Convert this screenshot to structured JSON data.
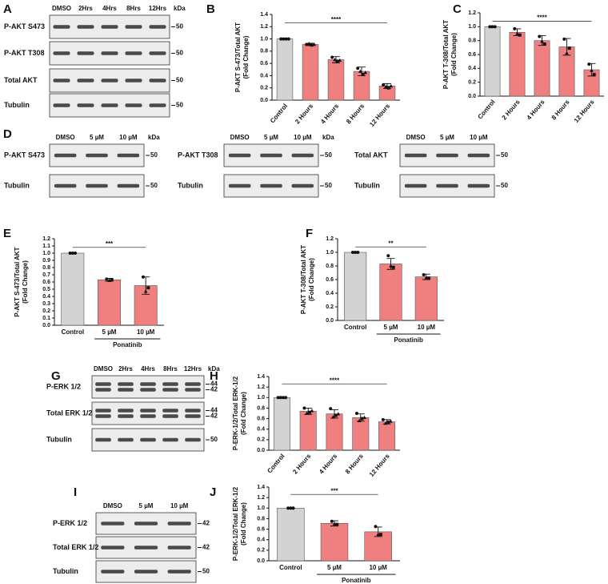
{
  "chart_data": [
    {
      "type": "bar",
      "panel": "B",
      "ylabel": [
        "P-AKT S-473/Total AKT",
        "(Fold Change)"
      ],
      "categories": [
        "Control",
        "2 Hours",
        "4 Hours",
        "8 Hours",
        "12 Hours"
      ],
      "values": [
        1.0,
        0.91,
        0.66,
        0.47,
        0.23
      ],
      "errors": [
        0,
        0.02,
        0.05,
        0.07,
        0.04
      ],
      "points": [
        [
          1.0,
          1.0,
          1.0,
          1.0
        ],
        [
          0.91,
          0.92,
          0.9,
          0.91
        ],
        [
          0.7,
          0.66,
          0.63,
          0.65
        ],
        [
          0.52,
          0.47,
          0.42,
          0.45
        ],
        [
          0.25,
          0.22,
          0.2,
          0.23
        ]
      ],
      "colors": [
        "#d3d3d3",
        "#f08080",
        "#f08080",
        "#f08080",
        "#f08080"
      ],
      "ylim": [
        0,
        1.4
      ],
      "yticks": [
        {
          "value": 0,
          "label": "0.0"
        },
        0.2,
        0.4,
        0.6,
        0.8,
        {
          "value": 1,
          "label": "1.0"
        },
        1.2,
        1.4
      ],
      "significance": "****"
    },
    {
      "type": "bar",
      "panel": "C",
      "ylabel": [
        "P-AKT T-308/Total AKT",
        "(Fold Change)"
      ],
      "categories": [
        "Control",
        "2 Hours",
        "4 Hours",
        "8 Hours",
        "12 Hours"
      ],
      "values": [
        1.0,
        0.92,
        0.8,
        0.71,
        0.38
      ],
      "errors": [
        0,
        0.05,
        0.07,
        0.12,
        0.09
      ],
      "points": [
        [
          1.0,
          1.0,
          1.0
        ],
        [
          0.97,
          0.9,
          0.88
        ],
        [
          0.86,
          0.79,
          0.75
        ],
        [
          0.82,
          0.62,
          0.69
        ],
        [
          0.46,
          0.37,
          0.31
        ]
      ],
      "colors": [
        "#d3d3d3",
        "#f08080",
        "#f08080",
        "#f08080",
        "#f08080"
      ],
      "ylim": [
        0,
        1.2
      ],
      "yticks": [
        {
          "value": 0,
          "label": "0.0"
        },
        0.2,
        0.4,
        0.6,
        0.8,
        {
          "value": 1,
          "label": "1.0"
        },
        1.2
      ],
      "significance": "****"
    },
    {
      "type": "bar",
      "panel": "E",
      "ylabel": [
        "P-AKT S-473/Total AKT",
        "(Fold Change)"
      ],
      "categories": [
        "Control",
        "5 µM",
        "10 µM"
      ],
      "group_label": "Ponatinib",
      "values": [
        1.0,
        0.63,
        0.55
      ],
      "errors": [
        0,
        0.02,
        0.12
      ],
      "points": [
        [
          1.0,
          1.0,
          1.0
        ],
        [
          0.64,
          0.62,
          0.63
        ],
        [
          0.67,
          0.47,
          0.52
        ]
      ],
      "colors": [
        "#d3d3d3",
        "#f08080",
        "#f08080"
      ],
      "ylim": [
        0,
        1.2
      ],
      "yticks": [
        {
          "value": 0,
          "label": "0.0"
        },
        0.1,
        0.2,
        0.3,
        0.4,
        0.5,
        0.6,
        0.7,
        0.8,
        0.9,
        {
          "value": 1,
          "label": "1.0"
        },
        1.1,
        1.2
      ],
      "significance": "***"
    },
    {
      "type": "bar",
      "panel": "F",
      "ylabel": [
        "P-AKT T-308/Total AKT",
        "(Fold Change)"
      ],
      "categories": [
        "Control",
        "5 µM",
        "10 µM"
      ],
      "group_label": "Ponatinib",
      "values": [
        1.0,
        0.83,
        0.64
      ],
      "errors": [
        0,
        0.08,
        0.04
      ],
      "points": [
        [
          1.0,
          1.0,
          1.0
        ],
        [
          0.95,
          0.8,
          0.78
        ],
        [
          0.67,
          0.63,
          0.62
        ]
      ],
      "colors": [
        "#d3d3d3",
        "#f08080",
        "#f08080"
      ],
      "ylim": [
        0,
        1.2
      ],
      "yticks": [
        {
          "value": 0,
          "label": "0.0"
        },
        0.2,
        0.4,
        0.6,
        0.8,
        {
          "value": 1,
          "label": "1.0"
        },
        1.2
      ],
      "significance": "**"
    },
    {
      "type": "bar",
      "panel": "H",
      "ylabel": [
        "P-ERK-1/2/Total ERK-1/2",
        "(Fold Change)"
      ],
      "categories": [
        "Control",
        "2 Hours",
        "4 Hours",
        "8 Hours",
        "12 Hours"
      ],
      "values": [
        1.0,
        0.74,
        0.69,
        0.62,
        0.54
      ],
      "errors": [
        0,
        0.06,
        0.08,
        0.07,
        0.04
      ],
      "points": [
        [
          1.0,
          1.0,
          1.0,
          1.0
        ],
        [
          0.8,
          0.7,
          0.72,
          0.75
        ],
        [
          0.79,
          0.63,
          0.66,
          0.69
        ],
        [
          0.7,
          0.56,
          0.6,
          0.62
        ],
        [
          0.58,
          0.51,
          0.53,
          0.55
        ]
      ],
      "colors": [
        "#d3d3d3",
        "#f08080",
        "#f08080",
        "#f08080",
        "#f08080"
      ],
      "ylim": [
        0,
        1.4
      ],
      "yticks": [
        {
          "value": 0,
          "label": "0.0"
        },
        0.2,
        0.4,
        0.6,
        0.8,
        {
          "value": 1,
          "label": "1.0"
        },
        1.2,
        1.4
      ],
      "significance": "****"
    },
    {
      "type": "bar",
      "panel": "J",
      "ylabel": [
        "P-ERK-1/2/Total ERK-1/2",
        "(Fold Change)"
      ],
      "categories": [
        "Control",
        "5 µM",
        "10 µM"
      ],
      "group_label": "Ponatinib",
      "values": [
        1.0,
        0.71,
        0.55
      ],
      "errors": [
        0,
        0.05,
        0.09
      ],
      "points": [
        [
          1.0,
          1.0,
          1.0
        ],
        [
          0.75,
          0.7,
          0.69
        ],
        [
          0.65,
          0.5,
          0.5
        ]
      ],
      "colors": [
        "#d3d3d3",
        "#f08080",
        "#f08080"
      ],
      "ylim": [
        0,
        1.4
      ],
      "yticks": [
        {
          "value": 0,
          "label": "0.0"
        },
        0.2,
        0.4,
        0.6,
        0.8,
        {
          "value": 1,
          "label": "1.0"
        },
        1.2,
        1.4
      ],
      "significance": "***"
    }
  ],
  "blot_panels": [
    {
      "panel": "A",
      "blots": [
        {
          "lanes": [
            "DMSO",
            "2Hrs",
            "4Hrs",
            "8Hrs",
            "12Hrs"
          ],
          "unit": "kDa",
          "rows": [
            {
              "label": "P-AKT S473",
              "markers": [
                "50"
              ]
            },
            {
              "label": "P-AKT T308",
              "markers": [
                "50"
              ]
            },
            {
              "label": "Total AKT",
              "markers": [
                "50"
              ]
            },
            {
              "label": "Tubulin",
              "markers": [
                "50"
              ]
            }
          ]
        }
      ]
    },
    {
      "panel": "D",
      "blots": [
        {
          "lanes": [
            "DMSO",
            "5 µM",
            "10 µM"
          ],
          "unit": "kDa",
          "rows": [
            {
              "label": "P-AKT S473",
              "markers": [
                "50"
              ]
            },
            {
              "label": "Tubulin",
              "markers": [
                "50"
              ]
            }
          ]
        },
        {
          "lanes": [
            "DMSO",
            "5 µM",
            "10 µM"
          ],
          "unit": "kDa",
          "rows": [
            {
              "label": "P-AKT T308",
              "markers": [
                "50"
              ]
            },
            {
              "label": "Tubulin",
              "markers": [
                "50"
              ]
            }
          ]
        },
        {
          "lanes": [
            "DMSO",
            "5 µM",
            "10 µM"
          ],
          "rows": [
            {
              "label": "Total AKT",
              "markers": [
                "50"
              ]
            },
            {
              "label": "Tubulin",
              "markers": [
                "50"
              ]
            }
          ]
        }
      ]
    },
    {
      "panel": "G",
      "blots": [
        {
          "lanes": [
            "DMSO",
            "2Hrs",
            "4Hrs",
            "8Hrs",
            "12Hrs"
          ],
          "unit": "kDa",
          "rows": [
            {
              "label": "P-ERK 1/2",
              "markers": [
                "44",
                "42"
              ]
            },
            {
              "label": "Total ERK 1/2",
              "markers": [
                "44",
                "42"
              ]
            },
            {
              "label": "Tubulin",
              "markers": [
                "50"
              ]
            }
          ]
        }
      ]
    },
    {
      "panel": "I",
      "blots": [
        {
          "lanes": [
            "DMSO",
            "5 µM",
            "10 µM"
          ],
          "rows": [
            {
              "label": "P-ERK 1/2",
              "markers": [
                "42"
              ]
            },
            {
              "label": "Total ERK 1/2",
              "markers": [
                "42"
              ]
            },
            {
              "label": "Tubulin",
              "markers": [
                "50"
              ]
            }
          ]
        }
      ]
    }
  ]
}
